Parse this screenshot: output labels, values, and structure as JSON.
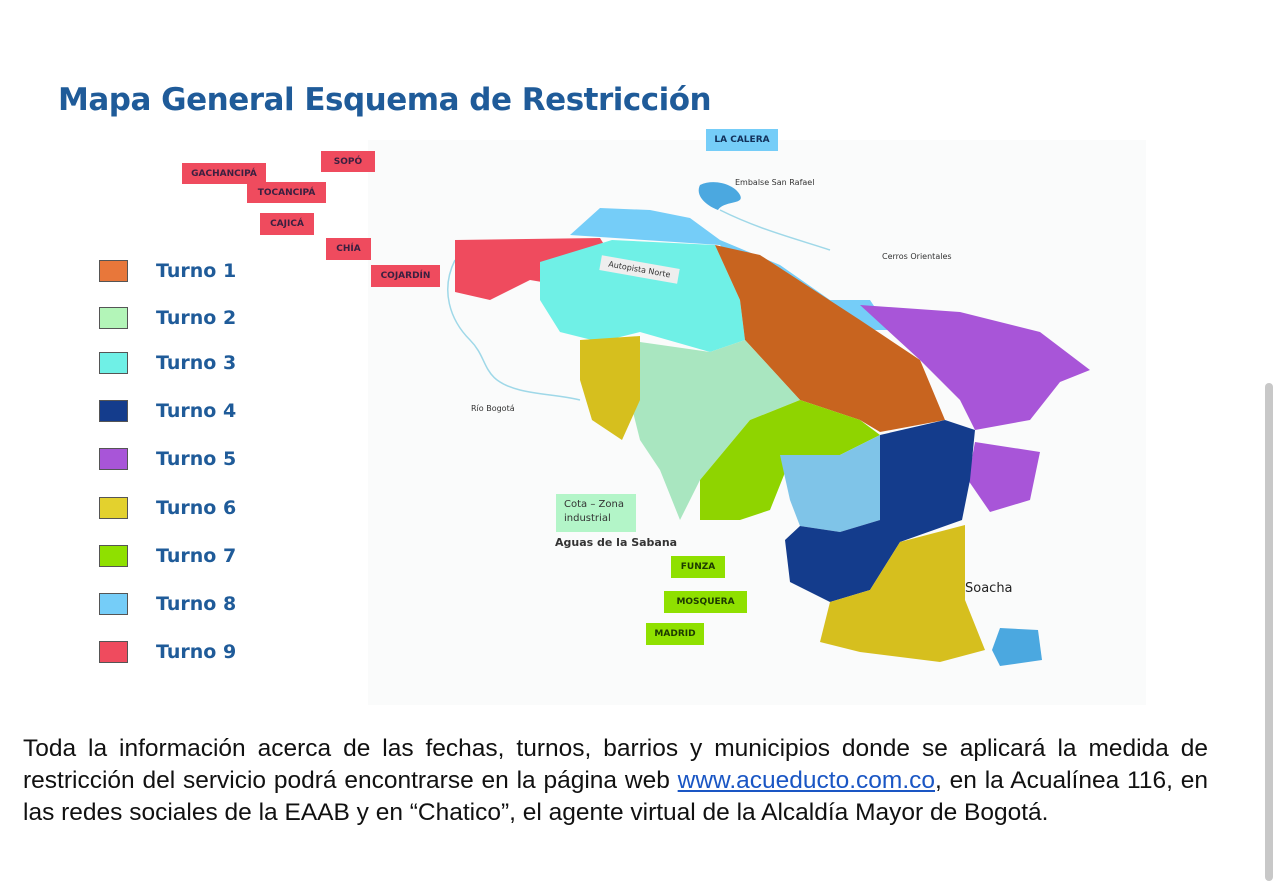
{
  "title": "Mapa General Esquema de Restricción",
  "legend": [
    {
      "label": "Turno 1",
      "color": "#e8773a"
    },
    {
      "label": "Turno 2",
      "color": "#b3f5b8"
    },
    {
      "label": "Turno 3",
      "color": "#6ff0e6"
    },
    {
      "label": "Turno 4",
      "color": "#143c8c"
    },
    {
      "label": "Turno 5",
      "color": "#a855d8"
    },
    {
      "label": "Turno 6",
      "color": "#e3d12e"
    },
    {
      "label": "Turno 7",
      "color": "#8fe000"
    },
    {
      "label": "Turno 8",
      "color": "#75cdf8"
    },
    {
      "label": "Turno 9",
      "color": "#ef4b5e"
    }
  ],
  "municipalities": {
    "sopo": "SOPÓ",
    "gachancipa": "GACHANCIPÁ",
    "tocancipa": "TOCANCIPÁ",
    "cajica": "CAJICÁ",
    "chia": "CHÍA",
    "cojardin": "COJARDÍN",
    "la_calera": "LA CALERA",
    "funza": "FUNZA",
    "mosquera": "MOSQUERA",
    "madrid": "MADRID",
    "cota": "Cota – Zona industrial"
  },
  "map_labels": {
    "embalse": "Embalse San Rafael",
    "cerros": "Cerros Orientales",
    "autopista": "Autopista Norte",
    "rio": "Río Bogotá",
    "aguas": "Aguas de la Sabana",
    "soacha": "Soacha"
  },
  "paragraph": {
    "before": "Toda la información acerca de las fechas, turnos, barrios y municipios donde se aplicará la medida de restricción del servicio podrá encontrarse en la página web ",
    "link": "www.acueducto.com.co",
    "after": ", en la Acualínea 116, en las redes sociales de la EAAB y en “Chatico”, el agente virtual de la Alcaldía Mayor de Bogotá."
  }
}
